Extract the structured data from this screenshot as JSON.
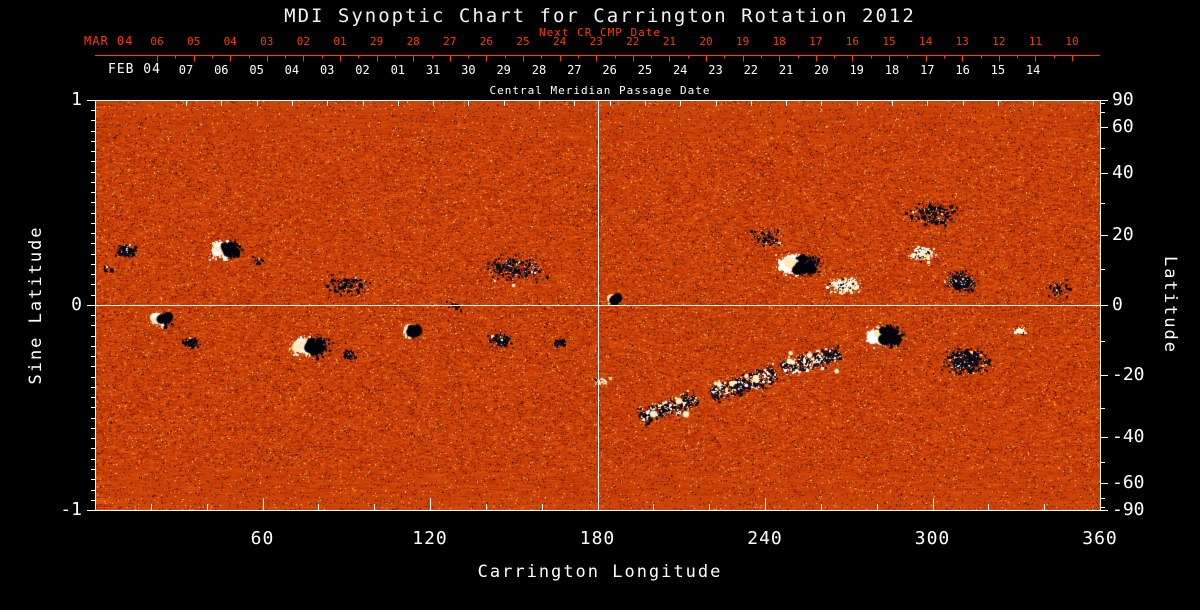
{
  "chart_data": {
    "type": "heatmap",
    "title": "MDI Synoptic Chart for Carrington Rotation 2012",
    "xlabel": "Carrington Longitude",
    "ylabel_left": "Sine Latitude",
    "ylabel_right": "Latitude",
    "xlim": [
      0,
      360
    ],
    "ylim_sine": [
      -1,
      1
    ],
    "x_ticks": [
      60,
      120,
      180,
      240,
      300,
      360
    ],
    "x_minor_step": 20,
    "y_left_ticks": [
      "1",
      "0",
      "-1"
    ],
    "y_right_ticks": [
      90,
      60,
      40,
      20,
      0,
      -20,
      -40,
      -60,
      -90
    ],
    "grid": {
      "vertical_at_lon": 180,
      "horizontal_at_sine_lat": 0
    },
    "colormap": "solar magnetogram: orange-red granular noise background; black patches = negative magnetic polarity; white/cream patches = positive magnetic polarity; horizontal streaking near poles",
    "colors": {
      "background": "#000000",
      "axis_white": "#ffffff",
      "axis_red": "#ff3b00",
      "noise_low": "#8c1e00",
      "noise_mid": "#d84a06",
      "noise_high": "#ff8030",
      "negative_polarity": "#000010",
      "positive_polarity": "#ffffff"
    },
    "top_axis_red": {
      "label": "Next CR CMP Date",
      "month_header": "MAR 04",
      "day_ticks": [
        "06",
        "05",
        "04",
        "03",
        "02",
        "01",
        "29",
        "28",
        "27",
        "26",
        "25",
        "24",
        "23",
        "22",
        "21",
        "20",
        "19",
        "18",
        "17",
        "16",
        "15",
        "14",
        "13",
        "12",
        "11",
        "10"
      ]
    },
    "top_axis_white": {
      "label": "Central Meridian Passage Date",
      "month_header": "FEB 04",
      "day_ticks": [
        "07",
        "06",
        "05",
        "04",
        "03",
        "02",
        "01",
        "31",
        "30",
        "29",
        "28",
        "27",
        "26",
        "25",
        "24",
        "23",
        "22",
        "21",
        "20",
        "19",
        "18",
        "17",
        "16",
        "15",
        "14"
      ]
    },
    "active_regions": [
      {
        "lon": 11,
        "slat": 0.27,
        "rx": 13,
        "ry": 8,
        "type": "black",
        "intensity": "medium"
      },
      {
        "lon": 5,
        "slat": 0.18,
        "rx": 8,
        "ry": 5,
        "type": "black",
        "intensity": "faint"
      },
      {
        "lon": 24,
        "slat": -0.07,
        "rx": 14,
        "ry": 9,
        "type": "bipolar",
        "intensity": "medium",
        "core": "white"
      },
      {
        "lon": 34,
        "slat": -0.18,
        "rx": 11,
        "ry": 7,
        "type": "black",
        "intensity": "medium"
      },
      {
        "lon": 47,
        "slat": 0.27,
        "rx": 20,
        "ry": 12,
        "type": "bipolar",
        "intensity": "strong",
        "core": "white"
      },
      {
        "lon": 58,
        "slat": 0.22,
        "rx": 10,
        "ry": 6,
        "type": "black_speckle",
        "intensity": "faint"
      },
      {
        "lon": 77,
        "slat": -0.2,
        "rx": 24,
        "ry": 13,
        "type": "bipolar",
        "intensity": "strong",
        "core": "white"
      },
      {
        "lon": 91,
        "slat": -0.24,
        "rx": 9,
        "ry": 6,
        "type": "black",
        "intensity": "medium"
      },
      {
        "lon": 113,
        "slat": -0.12,
        "rx": 13,
        "ry": 8,
        "type": "bipolar",
        "intensity": "medium"
      },
      {
        "lon": 128,
        "slat": 0.0,
        "rx": 10,
        "ry": 6,
        "type": "black_speckle",
        "intensity": "faint"
      },
      {
        "lon": 145,
        "slat": -0.17,
        "rx": 14,
        "ry": 8,
        "type": "black",
        "intensity": "medium"
      },
      {
        "lon": 166,
        "slat": -0.18,
        "rx": 8,
        "ry": 5,
        "type": "black",
        "intensity": "medium"
      },
      {
        "lon": 186,
        "slat": 0.03,
        "rx": 9,
        "ry": 6,
        "type": "bipolar",
        "intensity": "medium"
      },
      {
        "lon": 181,
        "slat": -0.37,
        "rx": 12,
        "ry": 6,
        "type": "white_speckle",
        "intensity": "faint"
      },
      {
        "lon": 205,
        "slat": -0.5,
        "rx": 30,
        "ry": 12,
        "type": "trail",
        "angle": -18,
        "intensity": "medium"
      },
      {
        "lon": 232,
        "slat": -0.38,
        "rx": 34,
        "ry": 13,
        "type": "trail",
        "angle": -18,
        "intensity": "medium"
      },
      {
        "lon": 256,
        "slat": -0.27,
        "rx": 30,
        "ry": 12,
        "type": "trail",
        "angle": -15,
        "intensity": "medium"
      },
      {
        "lon": 252,
        "slat": 0.2,
        "rx": 26,
        "ry": 14,
        "type": "bipolar",
        "intensity": "strong",
        "core": "white"
      },
      {
        "lon": 268,
        "slat": 0.1,
        "rx": 20,
        "ry": 10,
        "type": "white_speckle",
        "intensity": "medium"
      },
      {
        "lon": 240,
        "slat": 0.33,
        "rx": 22,
        "ry": 12,
        "type": "black_speckle",
        "intensity": "faint"
      },
      {
        "lon": 283,
        "slat": -0.15,
        "rx": 22,
        "ry": 13,
        "type": "bipolar",
        "intensity": "strong",
        "core": "white"
      },
      {
        "lon": 296,
        "slat": 0.25,
        "rx": 16,
        "ry": 9,
        "type": "white_speckle",
        "intensity": "medium"
      },
      {
        "lon": 310,
        "slat": 0.12,
        "rx": 20,
        "ry": 12,
        "type": "black_speckle",
        "intensity": "medium"
      },
      {
        "lon": 312,
        "slat": -0.27,
        "rx": 26,
        "ry": 17,
        "type": "black_speckle",
        "intensity": "medium"
      },
      {
        "lon": 331,
        "slat": -0.12,
        "rx": 8,
        "ry": 5,
        "type": "white",
        "intensity": "medium"
      },
      {
        "lon": 345,
        "slat": 0.08,
        "rx": 16,
        "ry": 11,
        "type": "black_speckle",
        "intensity": "faint"
      },
      {
        "lon": 300,
        "slat": 0.45,
        "rx": 34,
        "ry": 16,
        "type": "black_speckle",
        "intensity": "faint"
      },
      {
        "lon": 150,
        "slat": 0.18,
        "rx": 40,
        "ry": 18,
        "type": "black_speckle",
        "intensity": "faint"
      },
      {
        "lon": 90,
        "slat": 0.1,
        "rx": 30,
        "ry": 14,
        "type": "black_speckle",
        "intensity": "faint"
      }
    ]
  }
}
